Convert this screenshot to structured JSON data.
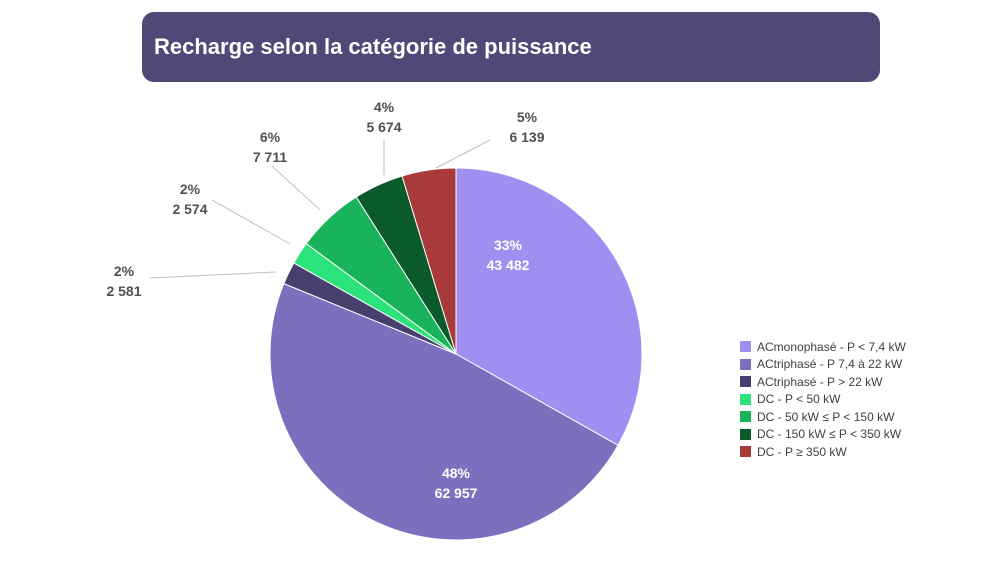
{
  "header": {
    "title": "Recharge selon la catégorie de puissance"
  },
  "chart_data": {
    "type": "pie",
    "title": "Recharge selon la catégorie de puissance",
    "slices": [
      {
        "name": "ACmonophasé - P < 7,4 kW",
        "value": 43482,
        "value_label": "43 482",
        "pct_label": "33%",
        "color": "#a08ff0"
      },
      {
        "name": "ACtriphasé - P 7,4 à 22 kW",
        "value": 62957,
        "value_label": "62 957",
        "pct_label": "48%",
        "color": "#7b6fbe"
      },
      {
        "name": "ACtriphasé - P > 22 kW",
        "value": 2581,
        "value_label": "2 581",
        "pct_label": "2%",
        "color": "#47406e"
      },
      {
        "name": "DC - P < 50 kW",
        "value": 2574,
        "value_label": "2 574",
        "pct_label": "2%",
        "color": "#2be37a"
      },
      {
        "name": "DC - 50 kW ≤ P < 150 kW",
        "value": 7711,
        "value_label": "7 711",
        "pct_label": "6%",
        "color": "#19b35b"
      },
      {
        "name": "DC - 150 kW  ≤ P < 350 kW",
        "value": 5674,
        "value_label": "5 674",
        "pct_label": "4%",
        "color": "#0b5a2c"
      },
      {
        "name": "DC - P ≥ 350 kW",
        "value": 6139,
        "value_label": "6 139",
        "pct_label": "5%",
        "color": "#a83a3a"
      }
    ],
    "legend_position": "right",
    "start_angle": "12 o'clock",
    "direction": "clockwise"
  }
}
